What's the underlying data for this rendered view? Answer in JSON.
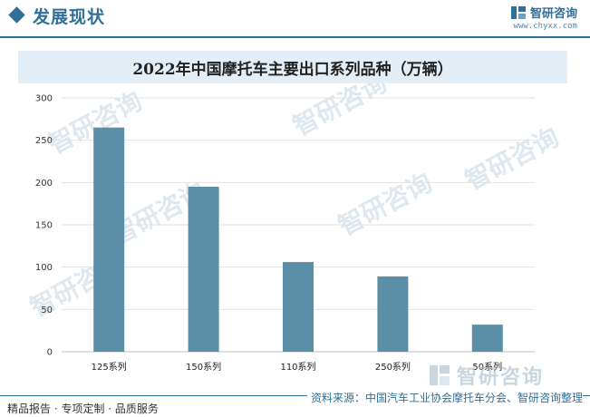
{
  "header": {
    "section_title": "发展现状",
    "brand_name": "智研咨询",
    "brand_url": "www.chyxx.com"
  },
  "watermark": {
    "text": "智研咨询"
  },
  "footer": {
    "left": "精品报告 · 专项定制 · 品质服务",
    "source": "资料来源：中国汽车工业协会摩托车分会、智研咨询整理"
  },
  "colors": {
    "accent": "#2f6f98",
    "bar": "#5b8fa7",
    "title_band": "#e3eef7"
  },
  "chart_data": {
    "type": "bar",
    "title": "2022年中国摩托车主要出口系列品种（万辆）",
    "categories": [
      "125系列",
      "150系列",
      "110系列",
      "250系列",
      "50系列"
    ],
    "values": [
      265,
      195,
      106,
      89,
      32
    ],
    "ylim": [
      0,
      300
    ],
    "yticks": [
      0,
      50,
      100,
      150,
      200,
      250,
      300
    ],
    "xlabel": "",
    "ylabel": "",
    "grid": true
  }
}
